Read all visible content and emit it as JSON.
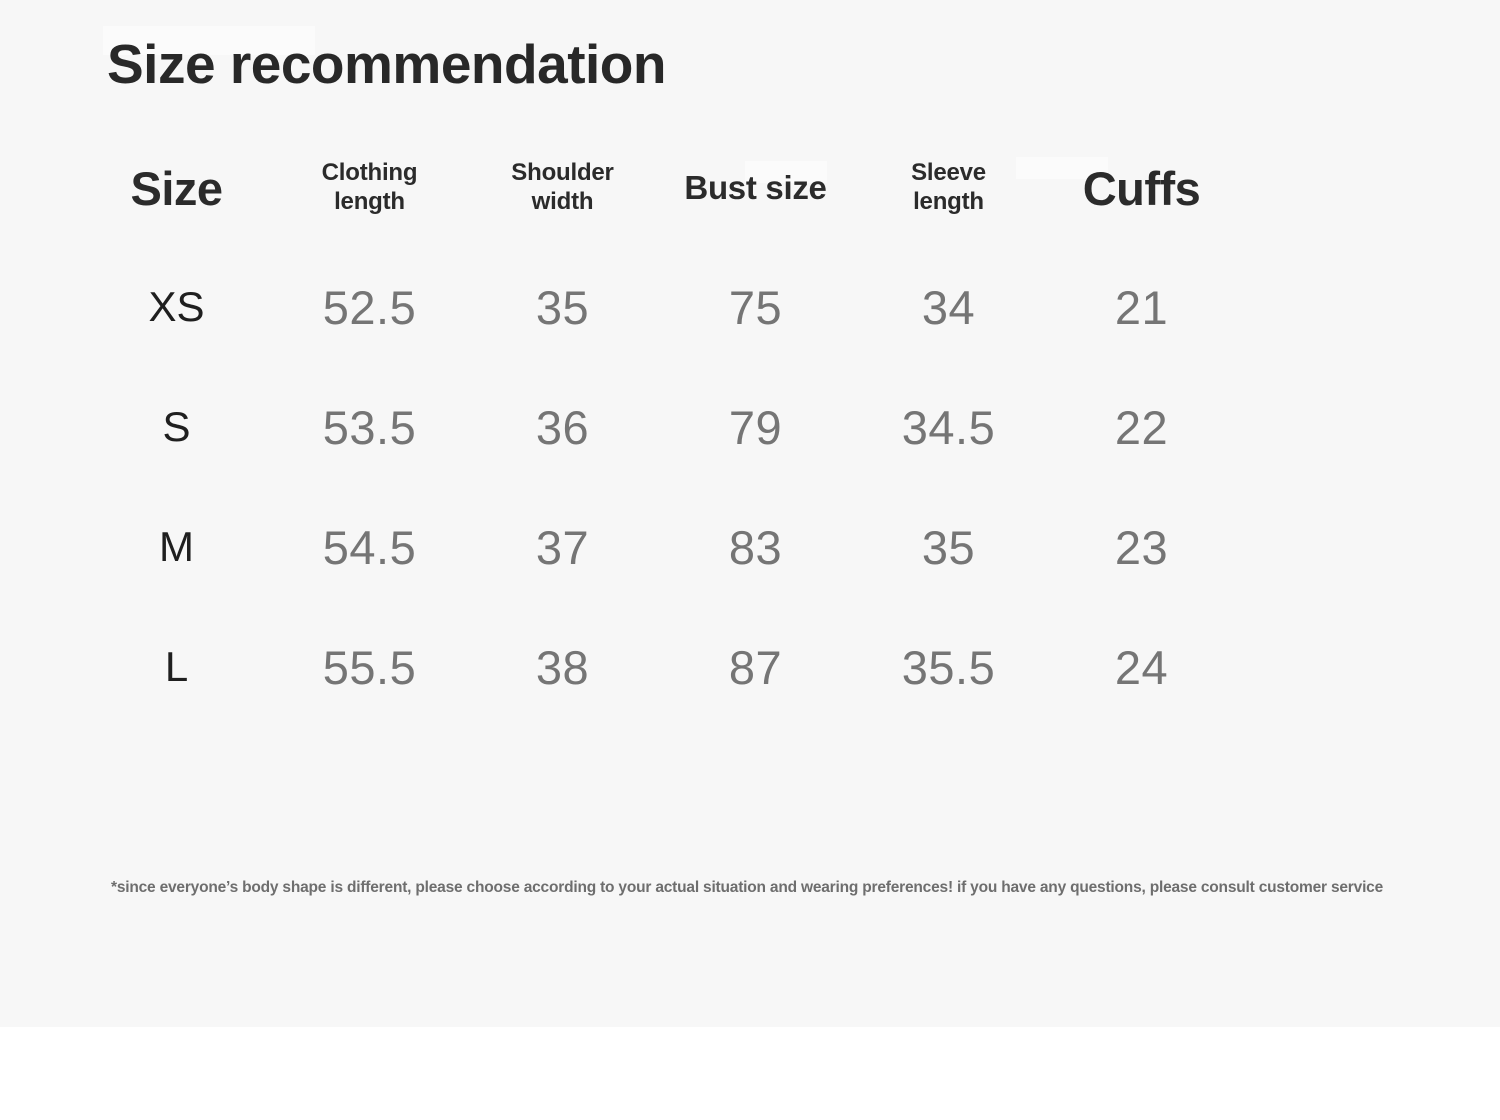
{
  "title": "Size recommendation",
  "table": {
    "headers": [
      {
        "label": "Size",
        "line1": "Size"
      },
      {
        "label": "Clothing length",
        "line1": "Clothing",
        "line2": "length"
      },
      {
        "label": "Shoulder width",
        "line1": "Shoulder",
        "line2": "width"
      },
      {
        "label": "Bust size",
        "line1": "Bust size"
      },
      {
        "label": "Sleeve length",
        "line1": "Sleeve",
        "line2": "length"
      },
      {
        "label": "Cuffs",
        "line1": "Cuffs"
      }
    ]
  },
  "chart_data": {
    "type": "table",
    "title": "Size recommendation",
    "columns": [
      "Size",
      "Clothing length",
      "Shoulder width",
      "Bust size",
      "Sleeve length",
      "Cuffs"
    ],
    "rows": [
      [
        "XS",
        52.5,
        35,
        75,
        34,
        21
      ],
      [
        "S",
        53.5,
        36,
        79,
        34.5,
        22
      ],
      [
        "M",
        54.5,
        37,
        83,
        35,
        23
      ],
      [
        "L",
        55.5,
        38,
        87,
        35.5,
        24
      ]
    ],
    "footnote": "*since everyone’s body shape is different, please choose according to your actual situation and wearing preferences! if you have any questions, please consult customer service"
  },
  "footnote": "*since everyone’s body shape is different, please choose according to your actual situation and wearing preferences! if you have any questions, please consult customer service",
  "colors": {
    "page_background": "#f7f7f7",
    "bottom_strip": "#ffffff",
    "heading_text": "#282828",
    "size_label_text": "#1f1f1f",
    "value_text": "#757575",
    "footnote_text": "#6e6e6e"
  }
}
